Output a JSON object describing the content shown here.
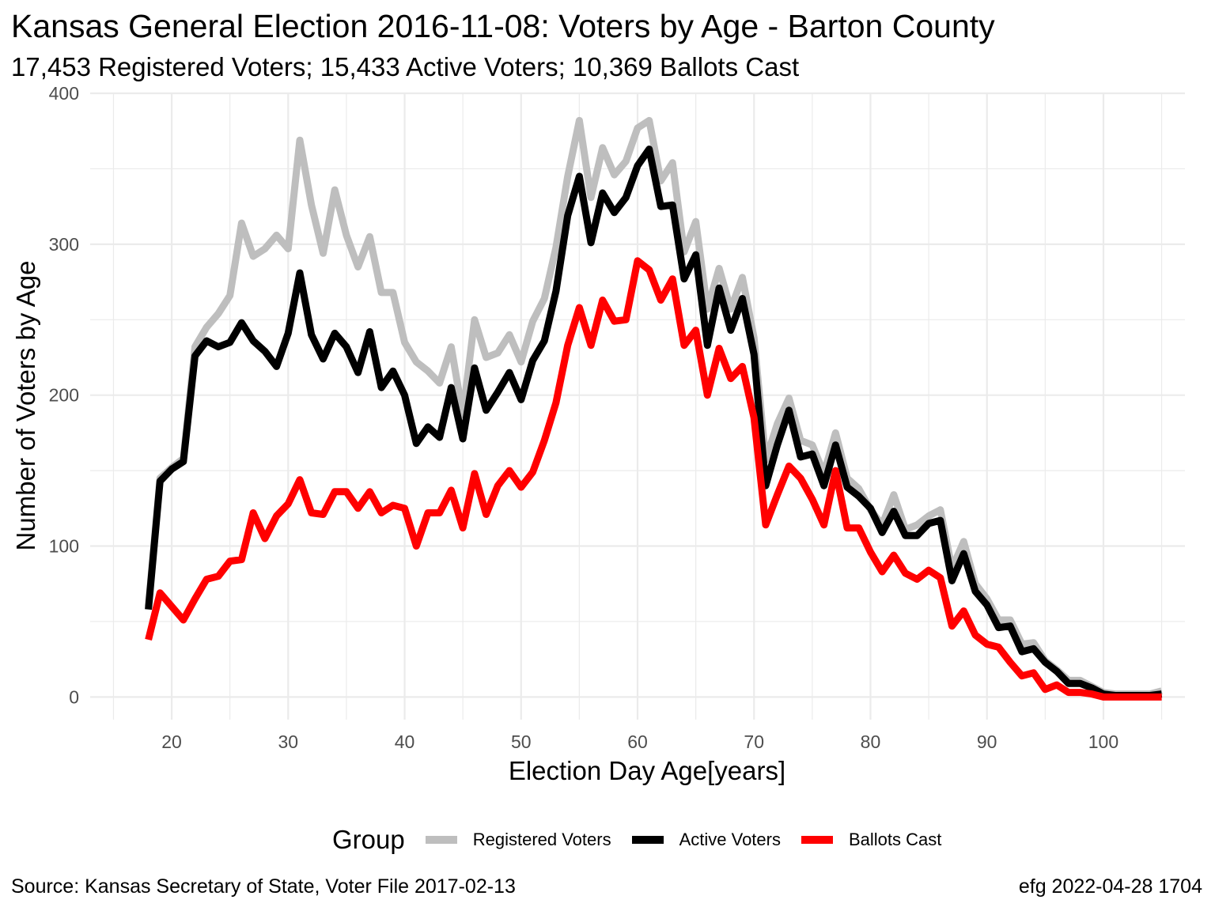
{
  "chart_data": {
    "type": "line",
    "title": "Kansas General Election 2016-11-08:  Voters by Age - Barton County",
    "subtitle": "17,453 Registered Voters; 15,433 Active Voters; 10,369 Ballots Cast",
    "xlabel": "Election Day Age[years]",
    "ylabel": "Number of Voters by Age",
    "xlim": [
      13,
      107
    ],
    "ylim": [
      -15,
      400
    ],
    "x_ticks": [
      20,
      30,
      40,
      50,
      60,
      70,
      80,
      90,
      100
    ],
    "y_ticks": [
      0,
      100,
      200,
      300,
      400
    ],
    "grid": true,
    "x_start": 18,
    "series": [
      {
        "name": "Registered Voters",
        "color": "#bebebe",
        "values": [
          60,
          145,
          152,
          158,
          232,
          245,
          254,
          266,
          314,
          292,
          297,
          306,
          297,
          369,
          326,
          294,
          336,
          306,
          285,
          305,
          268,
          268,
          235,
          222,
          216,
          208,
          232,
          187,
          250,
          225,
          228,
          240,
          222,
          249,
          264,
          298,
          345,
          382,
          331,
          364,
          346,
          355,
          377,
          382,
          342,
          354,
          295,
          315,
          257,
          284,
          257,
          278,
          238,
          157,
          181,
          198,
          170,
          167,
          148,
          175,
          145,
          138,
          124,
          114,
          134,
          111,
          114,
          120,
          124,
          85,
          103,
          75,
          65,
          51,
          51,
          35,
          36,
          24,
          18,
          11,
          11,
          7,
          3,
          2,
          2,
          2,
          2,
          4
        ]
      },
      {
        "name": "Active Voters",
        "color": "#000000",
        "values": [
          58,
          143,
          151,
          156,
          226,
          236,
          232,
          235,
          248,
          236,
          229,
          219,
          241,
          281,
          240,
          224,
          241,
          232,
          215,
          242,
          205,
          216,
          200,
          168,
          179,
          172,
          205,
          171,
          218,
          190,
          202,
          215,
          197,
          223,
          236,
          269,
          319,
          345,
          301,
          334,
          321,
          331,
          352,
          363,
          325,
          326,
          277,
          293,
          233,
          271,
          243,
          264,
          227,
          140,
          167,
          190,
          159,
          161,
          140,
          167,
          139,
          133,
          125,
          109,
          123,
          107,
          107,
          115,
          117,
          77,
          95,
          70,
          61,
          46,
          47,
          30,
          32,
          23,
          17,
          9,
          9,
          6,
          2,
          1,
          1,
          1,
          1,
          2
        ]
      },
      {
        "name": "Ballots Cast",
        "color": "#ff0000",
        "values": [
          38,
          69,
          60,
          51,
          65,
          78,
          80,
          90,
          91,
          122,
          105,
          120,
          128,
          144,
          122,
          121,
          136,
          136,
          125,
          136,
          122,
          127,
          125,
          100,
          122,
          122,
          137,
          112,
          148,
          121,
          140,
          150,
          139,
          149,
          170,
          195,
          233,
          258,
          233,
          263,
          249,
          250,
          289,
          283,
          263,
          277,
          233,
          243,
          200,
          231,
          211,
          219,
          185,
          114,
          134,
          153,
          145,
          131,
          114,
          150,
          112,
          112,
          96,
          83,
          94,
          82,
          78,
          84,
          79,
          47,
          57,
          41,
          35,
          33,
          23,
          14,
          16,
          5,
          8,
          3,
          3,
          2,
          0,
          0,
          0,
          0,
          0,
          0
        ]
      }
    ]
  },
  "legend": {
    "title": "Group",
    "items": [
      "Registered Voters",
      "Active Voters",
      "Ballots Cast"
    ]
  },
  "footer": {
    "source": "Source:  Kansas Secretary of State, Voter File  2017-02-13",
    "credit": "efg 2022-04-28 1704"
  }
}
